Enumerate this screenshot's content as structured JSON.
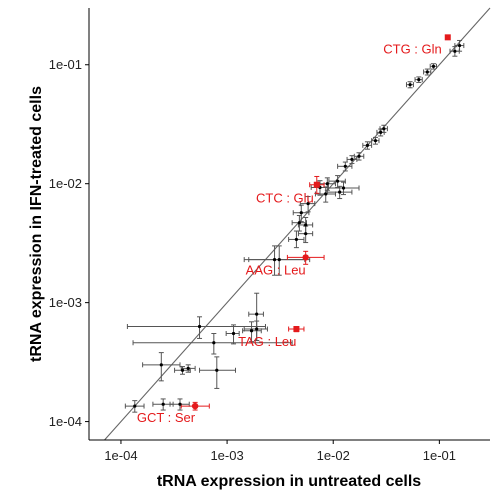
{
  "chart_data": {
    "type": "scatter",
    "xlabel": "tRNA expression in untreated cells",
    "ylabel": "tRNA expression in IFN-treated cells",
    "xscale": "log",
    "yscale": "log",
    "xlim": [
      5e-05,
      0.3
    ],
    "ylim": [
      7e-05,
      0.3
    ],
    "xticks": [
      {
        "value": 0.0001,
        "label": "1e-04"
      },
      {
        "value": 0.001,
        "label": "1e-03"
      },
      {
        "value": 0.01,
        "label": "1e-02"
      },
      {
        "value": 0.1,
        "label": "1e-01"
      }
    ],
    "yticks": [
      {
        "value": 0.0001,
        "label": "1e-04"
      },
      {
        "value": 0.001,
        "label": "1e-03"
      },
      {
        "value": 0.01,
        "label": "1e-02"
      },
      {
        "value": 0.1,
        "label": "1e-01"
      }
    ],
    "reference_line": "y = x",
    "colors": {
      "highlight": "#e41a1c",
      "normal": "#000000",
      "error_bar": "#555555",
      "reference": "#666666"
    },
    "points": [
      {
        "x": 0.000135,
        "y": 0.000135,
        "xerr": [
          0.00011,
          0.000165
        ],
        "yerr": [
          0.00012,
          0.00015
        ]
      },
      {
        "x": 0.00025,
        "y": 0.00014,
        "xerr": [
          0.0002,
          0.00031
        ],
        "yerr": [
          0.000125,
          0.000155
        ]
      },
      {
        "x": 0.00036,
        "y": 0.00014,
        "xerr": [
          0.00029,
          0.00044
        ],
        "yerr": [
          0.000125,
          0.000155
        ]
      },
      {
        "x": 0.00024,
        "y": 0.0003,
        "xerr": [
          0.00016,
          0.00036
        ],
        "yerr": [
          0.00022,
          0.00038
        ]
      },
      {
        "x": 0.00038,
        "y": 0.00027,
        "xerr": [
          0.00032,
          0.00045
        ],
        "yerr": [
          0.00025,
          0.00029
        ]
      },
      {
        "x": 0.00043,
        "y": 0.00028,
        "xerr": [
          0.00037,
          0.0005
        ],
        "yerr": [
          0.00026,
          0.0003
        ]
      },
      {
        "x": 0.00055,
        "y": 0.00063,
        "xerr": [
          0.000115,
          0.0023
        ],
        "yerr": [
          0.0005,
          0.00076
        ]
      },
      {
        "x": 0.00075,
        "y": 0.00046,
        "xerr": [
          0.00013,
          0.0041
        ],
        "yerr": [
          0.00037,
          0.00055
        ]
      },
      {
        "x": 0.0008,
        "y": 0.00027,
        "xerr": [
          0.00055,
          0.0012
        ],
        "yerr": [
          0.00019,
          0.00035
        ]
      },
      {
        "x": 0.00115,
        "y": 0.00055,
        "xerr": [
          0.00098,
          0.0013
        ],
        "yerr": [
          0.00045,
          0.00065
        ]
      },
      {
        "x": 0.0017,
        "y": 0.00058,
        "xerr": [
          0.0014,
          0.0021
        ],
        "yerr": [
          0.00047,
          0.00069
        ]
      },
      {
        "x": 0.0019,
        "y": 0.0008,
        "xerr": [
          0.0016,
          0.0022
        ],
        "yerr": [
          0.00048,
          0.0012
        ]
      },
      {
        "x": 0.0019,
        "y": 0.0006,
        "xerr": [
          0.00145,
          0.0024
        ],
        "yerr": [
          0.00048,
          0.0007
        ]
      },
      {
        "x": 0.0028,
        "y": 0.0023,
        "xerr": [
          0.00145,
          0.0054
        ],
        "yerr": [
          0.0017,
          0.003
        ]
      },
      {
        "x": 0.0031,
        "y": 0.0023,
        "xerr": [
          0.0016,
          0.006
        ],
        "yerr": [
          0.0017,
          0.003
        ]
      },
      {
        "x": 0.0045,
        "y": 0.0034,
        "xerr": [
          0.0038,
          0.0053
        ],
        "yerr": [
          0.0029,
          0.004
        ]
      },
      {
        "x": 0.0048,
        "y": 0.0047,
        "xerr": [
          0.0041,
          0.0056
        ],
        "yerr": [
          0.004,
          0.0054
        ]
      },
      {
        "x": 0.005,
        "y": 0.0057,
        "xerr": [
          0.0042,
          0.0059
        ],
        "yerr": [
          0.0048,
          0.0066
        ]
      },
      {
        "x": 0.0055,
        "y": 0.0045,
        "xerr": [
          0.0047,
          0.0064
        ],
        "yerr": [
          0.0038,
          0.0052
        ]
      },
      {
        "x": 0.0055,
        "y": 0.0038,
        "xerr": [
          0.0047,
          0.0064
        ],
        "yerr": [
          0.0032,
          0.0044
        ]
      },
      {
        "x": 0.0058,
        "y": 0.0068,
        "xerr": [
          0.0049,
          0.0067
        ],
        "yerr": [
          0.0058,
          0.0078
        ]
      },
      {
        "x": 0.0075,
        "y": 0.0093,
        "xerr": [
          0.0062,
          0.009
        ],
        "yerr": [
          0.008,
          0.0106
        ]
      },
      {
        "x": 0.0085,
        "y": 0.0082,
        "xerr": [
          0.0068,
          0.0105
        ],
        "yerr": [
          0.007,
          0.0094
        ]
      },
      {
        "x": 0.0088,
        "y": 0.01,
        "xerr": [
          0.0072,
          0.0105
        ],
        "yerr": [
          0.0088,
          0.0112
        ]
      },
      {
        "x": 0.011,
        "y": 0.0105,
        "xerr": [
          0.0091,
          0.013
        ],
        "yerr": [
          0.0093,
          0.0117
        ]
      },
      {
        "x": 0.0115,
        "y": 0.0085,
        "xerr": [
          0.0088,
          0.015
        ],
        "yerr": [
          0.0075,
          0.0095
        ]
      },
      {
        "x": 0.0125,
        "y": 0.0092,
        "xerr": [
          0.009,
          0.0175
        ],
        "yerr": [
          0.0081,
          0.0103
        ]
      },
      {
        "x": 0.013,
        "y": 0.014,
        "xerr": [
          0.011,
          0.015
        ],
        "yerr": [
          0.0128,
          0.0152
        ]
      },
      {
        "x": 0.015,
        "y": 0.016,
        "xerr": [
          0.0135,
          0.0167
        ],
        "yerr": [
          0.0148,
          0.0172
        ]
      },
      {
        "x": 0.0175,
        "y": 0.017,
        "xerr": [
          0.0158,
          0.0194
        ],
        "yerr": [
          0.0158,
          0.0182
        ]
      },
      {
        "x": 0.021,
        "y": 0.021,
        "xerr": [
          0.019,
          0.023
        ],
        "yerr": [
          0.0195,
          0.0225
        ]
      },
      {
        "x": 0.025,
        "y": 0.023,
        "xerr": [
          0.023,
          0.027
        ],
        "yerr": [
          0.0215,
          0.0245
        ]
      },
      {
        "x": 0.028,
        "y": 0.027,
        "xerr": [
          0.0258,
          0.0302
        ],
        "yerr": [
          0.0252,
          0.0288
        ]
      },
      {
        "x": 0.03,
        "y": 0.029,
        "xerr": [
          0.0276,
          0.0324
        ],
        "yerr": [
          0.027,
          0.031
        ]
      },
      {
        "x": 0.053,
        "y": 0.068,
        "xerr": [
          0.049,
          0.057
        ],
        "yerr": [
          0.064,
          0.072
        ]
      },
      {
        "x": 0.064,
        "y": 0.075,
        "xerr": [
          0.059,
          0.069
        ],
        "yerr": [
          0.071,
          0.079
        ]
      },
      {
        "x": 0.077,
        "y": 0.087,
        "xerr": [
          0.071,
          0.083
        ],
        "yerr": [
          0.082,
          0.092
        ]
      },
      {
        "x": 0.088,
        "y": 0.097,
        "xerr": [
          0.082,
          0.094
        ],
        "yerr": [
          0.092,
          0.102
        ]
      },
      {
        "x": 0.14,
        "y": 0.13,
        "xerr": [
          0.126,
          0.154
        ],
        "yerr": [
          0.118,
          0.142
        ]
      },
      {
        "x": 0.155,
        "y": 0.145,
        "xerr": [
          0.14,
          0.17
        ],
        "yerr": [
          0.13,
          0.16
        ]
      }
    ],
    "highlighted": [
      {
        "label": "CTG : Gln",
        "x": 0.12,
        "y": 0.17,
        "xerr": [
          0.117,
          0.123
        ],
        "yerr": [
          0.166,
          0.174
        ],
        "marker": "square"
      },
      {
        "label": "CTC : Glu",
        "x": 0.007,
        "y": 0.0098,
        "xerr": [
          0.006,
          0.0082
        ],
        "yerr": [
          0.0083,
          0.0115
        ],
        "marker": "square"
      },
      {
        "label": "AAG : Leu",
        "x": 0.0055,
        "y": 0.0024,
        "xerr": [
          0.0037,
          0.0082
        ],
        "yerr": [
          0.0021,
          0.0027
        ],
        "marker": "circle"
      },
      {
        "label": "TAG : Leu",
        "x": 0.0045,
        "y": 0.0006,
        "xerr": [
          0.0038,
          0.0053
        ],
        "yerr": [
          0.00057,
          0.00063
        ],
        "marker": "square"
      },
      {
        "label": "GCT : Ser",
        "x": 0.0005,
        "y": 0.000135,
        "xerr": [
          0.00037,
          0.00068
        ],
        "yerr": [
          0.000125,
          0.000145
        ],
        "marker": "circle"
      }
    ]
  }
}
